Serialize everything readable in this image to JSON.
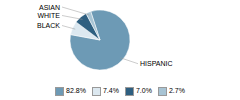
{
  "chart_data": {
    "type": "pie",
    "categories": [
      "HISPANIC",
      "BLACK",
      "WHITE",
      "ASIAN"
    ],
    "values": [
      82.8,
      7.4,
      7.0,
      2.7
    ],
    "value_labels": [
      "82.8%",
      "7.4%",
      "7.0%",
      "2.7%"
    ],
    "colors": [
      "#6d9ab5",
      "#dce8f0",
      "#2e5f80",
      "#a8c4d4"
    ],
    "legend": "bottom"
  }
}
